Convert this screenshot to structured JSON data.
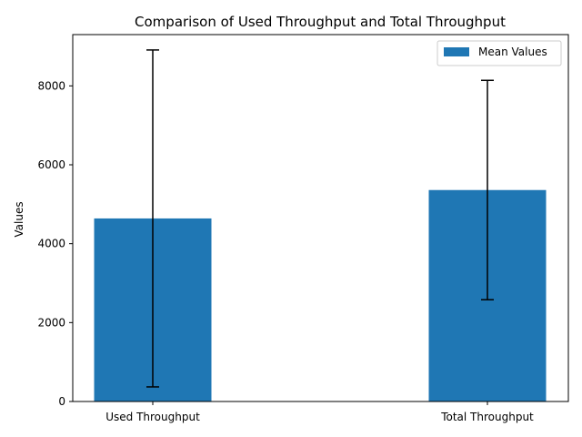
{
  "chart_data": {
    "type": "bar",
    "title": "Comparison of Used Throughput and Total Throughput",
    "xlabel": "",
    "ylabel": "Values",
    "categories": [
      "Used Throughput",
      "Total Throughput"
    ],
    "series": [
      {
        "name": "Mean Values",
        "values": [
          4640,
          5360
        ],
        "error": [
          4270,
          2780
        ],
        "color": "#1f77b4"
      }
    ],
    "ylim": [
      0,
      9300
    ],
    "yticks": [
      0,
      2000,
      4000,
      6000,
      8000
    ],
    "grid": false,
    "legend_position": "upper right"
  }
}
